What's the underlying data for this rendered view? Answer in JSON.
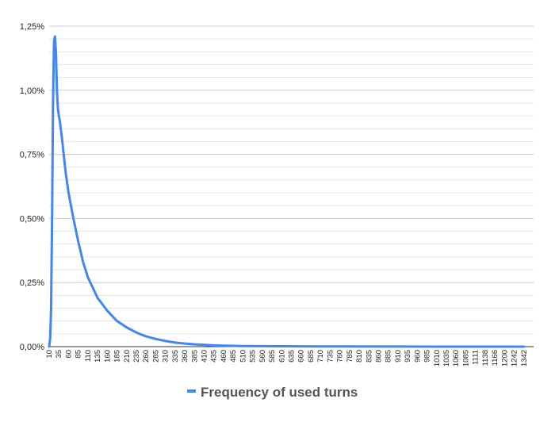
{
  "chart_data": {
    "type": "line",
    "title": "",
    "xlabel": "",
    "ylabel": "",
    "ylim": [
      0,
      1.25
    ],
    "y_ticks": [
      "0,00%",
      "0,25%",
      "0,50%",
      "0,75%",
      "1,00%",
      "1,25%"
    ],
    "x_tick_labels": [
      "10",
      "35",
      "60",
      "85",
      "110",
      "135",
      "160",
      "185",
      "210",
      "235",
      "260",
      "285",
      "310",
      "335",
      "360",
      "385",
      "410",
      "435",
      "460",
      "485",
      "510",
      "535",
      "560",
      "585",
      "610",
      "635",
      "660",
      "685",
      "710",
      "735",
      "760",
      "785",
      "810",
      "835",
      "860",
      "885",
      "910",
      "935",
      "960",
      "985",
      "1010",
      "1035",
      "1060",
      "1085",
      "1111",
      "1138",
      "1166",
      "1200",
      "1242",
      "1342"
    ],
    "grid": "horizontal",
    "legend_position": "bottom",
    "series": [
      {
        "name": "Frequency of used turns",
        "color": "#4285F4",
        "x_note": "x values are positions along the categorical turn axis (tick index units, 0 = label '10')",
        "x": [
          0,
          0.1,
          0.2,
          0.3,
          0.4,
          0.5,
          0.6,
          0.7,
          0.8,
          0.9,
          1.0,
          1.1,
          1.3,
          1.5,
          1.7,
          2,
          2.5,
          3,
          3.5,
          4,
          5,
          6,
          7,
          8,
          9,
          10,
          11,
          12,
          13,
          14,
          15,
          16,
          17,
          18,
          19,
          20,
          22,
          24,
          26,
          28,
          30,
          35,
          40,
          49
        ],
        "values": [
          0,
          0.03,
          0.15,
          0.5,
          0.95,
          1.19,
          1.21,
          1.15,
          1.0,
          0.93,
          0.9,
          0.88,
          0.82,
          0.75,
          0.68,
          0.6,
          0.5,
          0.41,
          0.33,
          0.27,
          0.19,
          0.14,
          0.1,
          0.075,
          0.055,
          0.04,
          0.03,
          0.022,
          0.016,
          0.012,
          0.009,
          0.007,
          0.005,
          0.004,
          0.003,
          0.0025,
          0.002,
          0.0015,
          0.001,
          0.0008,
          0.0006,
          0.0004,
          0.0002,
          0
        ]
      }
    ]
  }
}
